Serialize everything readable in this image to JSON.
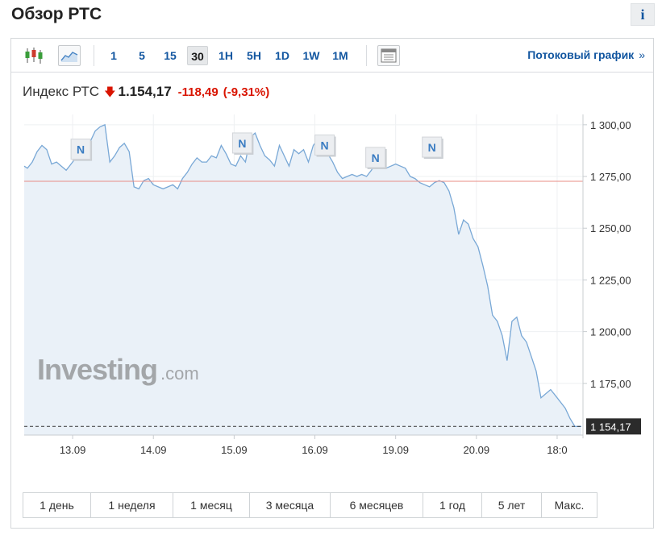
{
  "header": {
    "title": "Обзор РТС",
    "info_label": "i"
  },
  "toolbar": {
    "intervals": [
      "1",
      "5",
      "15",
      "30",
      "1H",
      "5H",
      "1D",
      "1W",
      "1M"
    ],
    "active_interval": "30",
    "stream_label": "Потоковый график",
    "stream_chevron": "»"
  },
  "quote": {
    "name": "Индекс РТС",
    "arrow": "🡇",
    "last": "1.154,17",
    "change": "-118,49",
    "change_pct": "(-9,31%)"
  },
  "branding": {
    "logo_word": "Investing",
    "logo_suffix": ".com"
  },
  "periods": [
    "1 день",
    "1 неделя",
    "1 месяц",
    "3 месяца",
    "6 месяцев",
    "1 год",
    "5 лет",
    "Макс."
  ],
  "colors": {
    "line": "#79a8d6",
    "area": "#eaf1f8",
    "reference": "#e88d86",
    "down": "#d91400",
    "link": "#1256a0",
    "last_price_bg": "#2b2b2b"
  },
  "chart_data": {
    "type": "area",
    "title": "",
    "xlabel": "",
    "ylabel": "",
    "ylim": [
      1150,
      1305
    ],
    "y_ticks": [
      1175,
      1200,
      1225,
      1250,
      1275,
      1300
    ],
    "y_tick_labels": [
      "1 175,00",
      "1 200,00",
      "1 225,00",
      "1 250,00",
      "1 275,00",
      "1 300,00"
    ],
    "x_range": [
      0,
      6.92
    ],
    "x_ticks": [
      0.6,
      1.6,
      2.6,
      3.6,
      4.6,
      5.6,
      6.6
    ],
    "x_tick_labels": [
      "13.09",
      "14.09",
      "15.09",
      "16.09",
      "19.09",
      "20.09",
      "18:0"
    ],
    "reference_line": 1272.66,
    "last_value": 1154.17,
    "last_value_label": "1 154,17",
    "grid": true,
    "news_markers": [
      {
        "x": 0.7,
        "y": 1288,
        "label": "N"
      },
      {
        "x": 2.7,
        "y": 1291,
        "label": "N"
      },
      {
        "x": 3.72,
        "y": 1290,
        "label": "N"
      },
      {
        "x": 4.35,
        "y": 1284,
        "label": "N"
      },
      {
        "x": 5.05,
        "y": 1289,
        "label": "N"
      }
    ],
    "x": [
      0.0,
      0.04,
      0.1,
      0.16,
      0.22,
      0.28,
      0.34,
      0.4,
      0.46,
      0.52,
      0.58,
      0.64,
      0.7,
      0.76,
      0.82,
      0.88,
      0.94,
      1.0,
      1.06,
      1.12,
      1.18,
      1.24,
      1.3,
      1.36,
      1.42,
      1.48,
      1.54,
      1.6,
      1.66,
      1.72,
      1.78,
      1.84,
      1.9,
      1.96,
      2.02,
      2.08,
      2.14,
      2.2,
      2.26,
      2.32,
      2.38,
      2.44,
      2.5,
      2.56,
      2.62,
      2.68,
      2.74,
      2.8,
      2.86,
      2.92,
      2.98,
      3.04,
      3.1,
      3.16,
      3.22,
      3.28,
      3.34,
      3.4,
      3.46,
      3.52,
      3.58,
      3.64,
      3.7,
      3.76,
      3.82,
      3.88,
      3.94,
      4.0,
      4.06,
      4.12,
      4.18,
      4.24,
      4.3,
      4.36,
      4.42,
      4.48,
      4.54,
      4.6,
      4.66,
      4.72,
      4.78,
      4.84,
      4.9,
      4.96,
      5.02,
      5.08,
      5.14,
      5.2,
      5.26,
      5.32,
      5.38,
      5.44,
      5.5,
      5.56,
      5.62,
      5.68,
      5.74,
      5.8,
      5.86,
      5.92,
      5.98,
      6.04,
      6.1,
      6.16,
      6.22,
      6.28,
      6.34,
      6.4,
      6.46,
      6.52,
      6.58,
      6.64,
      6.7,
      6.76,
      6.82,
      6.86,
      6.9
    ],
    "values": [
      1280,
      1279,
      1282,
      1287,
      1290,
      1288,
      1281,
      1282,
      1280,
      1278,
      1281,
      1284,
      1286,
      1291,
      1292,
      1297,
      1299,
      1300,
      1282,
      1285,
      1289,
      1291,
      1287,
      1270,
      1269,
      1273,
      1274,
      1271,
      1270,
      1269,
      1270,
      1271,
      1269,
      1274,
      1277,
      1281,
      1284,
      1282,
      1282,
      1285,
      1284,
      1290,
      1286,
      1281,
      1280,
      1285,
      1282,
      1294,
      1296,
      1290,
      1285,
      1283,
      1280,
      1290,
      1285,
      1280,
      1288,
      1286,
      1288,
      1282,
      1290,
      1293,
      1291,
      1286,
      1282,
      1277,
      1274,
      1275,
      1276,
      1275,
      1276,
      1275,
      1278,
      1282,
      1281,
      1279,
      1280,
      1281,
      1280,
      1279,
      1275,
      1274,
      1272,
      1271,
      1270,
      1272,
      1273,
      1272,
      1268,
      1260,
      1247,
      1254,
      1252,
      1245,
      1241,
      1232,
      1222,
      1208,
      1205,
      1198,
      1186,
      1205,
      1207,
      1198,
      1195,
      1188,
      1181,
      1168,
      1170,
      1172,
      1169,
      1166,
      1163,
      1158,
      1154.17,
      1154.17,
      1154.17
    ]
  }
}
